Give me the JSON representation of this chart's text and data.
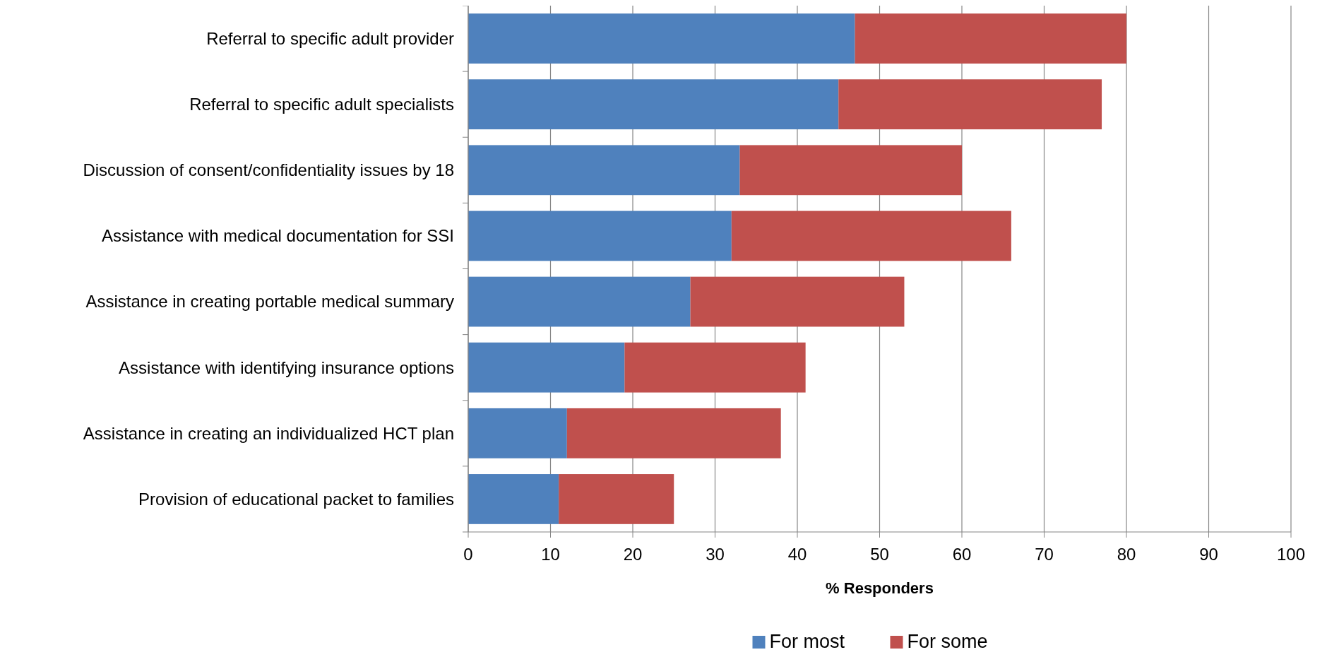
{
  "chart_data": {
    "type": "bar",
    "orientation": "horizontal",
    "stacked": true,
    "categories": [
      "Referral to specific adult provider",
      "Referral to specific adult specialists",
      "Discussion of consent/confidentiality issues by 18",
      "Assistance with medical documentation for SSI",
      "Assistance in creating portable medical summary",
      "Assistance with identifying insurance options",
      "Assistance in creating an individualized HCT plan",
      "Provision of educational packet to families"
    ],
    "series": [
      {
        "name": "For most",
        "color": "#4f81bd",
        "values": [
          47,
          45,
          33,
          32,
          27,
          19,
          12,
          11
        ]
      },
      {
        "name": "For some",
        "color": "#c0504d",
        "values": [
          33,
          32,
          27,
          34,
          26,
          22,
          26,
          14
        ]
      }
    ],
    "xlim": [
      0,
      100
    ],
    "xticks": [
      0,
      10,
      20,
      30,
      40,
      50,
      60,
      70,
      80,
      90,
      100
    ],
    "xlabel": "% Responders",
    "grid": "x",
    "legend": "bottom"
  }
}
